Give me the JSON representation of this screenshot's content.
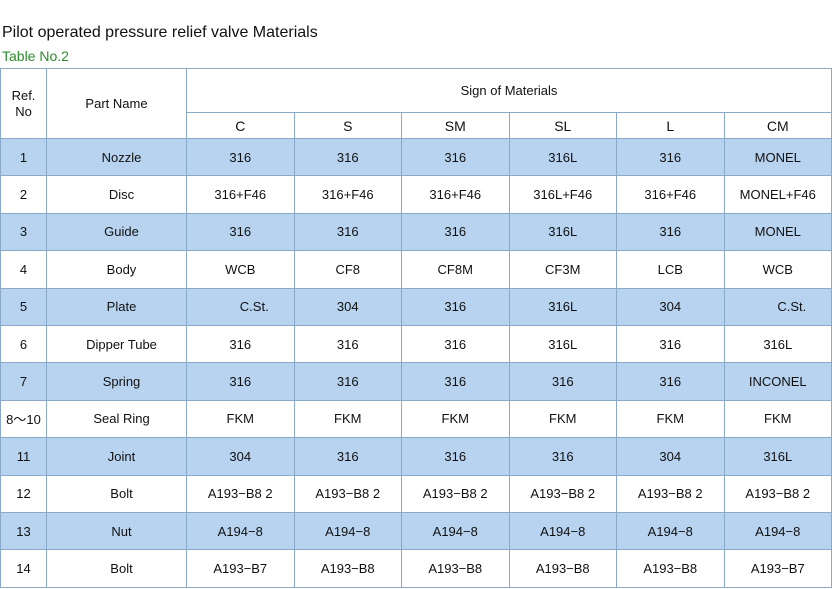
{
  "title": "Pilot operated pressure relief valve Materials",
  "subtitle": "Table No.2",
  "header": {
    "ref_label_1": "Ref.",
    "ref_label_2": "No",
    "part_label": "Part Name",
    "sign_label": "Sign of Materials",
    "codes": [
      "C",
      "S",
      "SM",
      "SL",
      "L",
      "CM"
    ]
  },
  "rows": [
    {
      "ref": "1",
      "part": "Nozzle",
      "vals": [
        "316",
        "316",
        "316",
        "316L",
        "316",
        "MONEL"
      ]
    },
    {
      "ref": "2",
      "part": "Disc",
      "vals": [
        "316+F46",
        "316+F46",
        "316+F46",
        "316L+F46",
        "316+F46",
        "MONEL+F46"
      ]
    },
    {
      "ref": "3",
      "part": "Guide",
      "vals": [
        "316",
        "316",
        "316",
        "316L",
        "316",
        "MONEL"
      ]
    },
    {
      "ref": "4",
      "part": "Body",
      "vals": [
        "WCB",
        "CF8",
        "CF8M",
        "CF3M",
        "LCB",
        "WCB"
      ]
    },
    {
      "ref": "5",
      "part": "Plate",
      "vals": [
        "C.St.",
        "304",
        "316",
        "316L",
        "304",
        "C.St."
      ]
    },
    {
      "ref": "6",
      "part": "Dipper Tube",
      "vals": [
        "316",
        "316",
        "316",
        "316L",
        "316",
        "316L"
      ]
    },
    {
      "ref": "7",
      "part": "Spring",
      "vals": [
        "316",
        "316",
        "316",
        "316",
        "316",
        "INCONEL"
      ]
    },
    {
      "ref": "8～10",
      "part": "Seal Ring",
      "vals": [
        "FKM",
        "FKM",
        "FKM",
        "FKM",
        "FKM",
        "FKM"
      ]
    },
    {
      "ref": "11",
      "part": "Joint",
      "vals": [
        "304",
        "316",
        "316",
        "316",
        "304",
        "316L"
      ]
    },
    {
      "ref": "12",
      "part": "Bolt",
      "vals": [
        "A193−B8 2",
        "A193−B8 2",
        "A193−B8 2",
        "A193−B8 2",
        "A193−B8 2",
        "A193−B8 2"
      ]
    },
    {
      "ref": "13",
      "part": "Nut",
      "vals": [
        "A194−8",
        "A194−8",
        "A194−8",
        "A194−8",
        "A194−8",
        "A194−8"
      ]
    },
    {
      "ref": "14",
      "part": "Bolt",
      "vals": [
        "A193−B7",
        "A193−B8",
        "A193−B8",
        "A193−B8",
        "A193−B8",
        "A193−B7"
      ]
    }
  ]
}
